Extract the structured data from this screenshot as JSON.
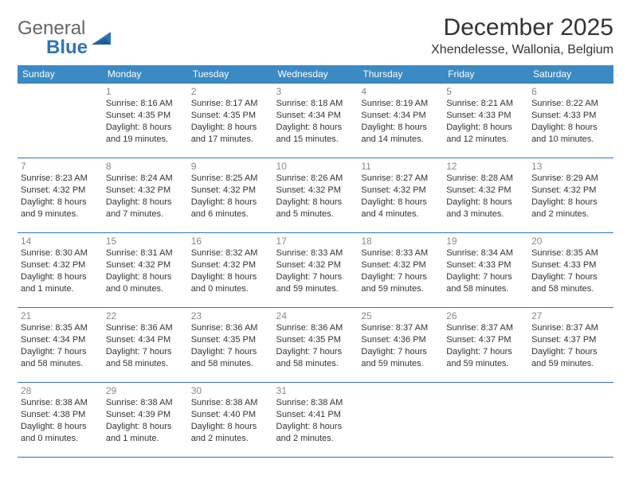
{
  "logo": {
    "word1": "General",
    "word2": "Blue"
  },
  "title": "December 2025",
  "location": "Xhendelesse, Wallonia, Belgium",
  "colors": {
    "header_bg": "#3b8ac4",
    "header_text": "#ffffff",
    "border": "#2f75b5",
    "daynum": "#888888",
    "text": "#333333",
    "logo_gray": "#666666",
    "logo_blue": "#2f75b5",
    "page_bg": "#ffffff"
  },
  "weekdays": [
    "Sunday",
    "Monday",
    "Tuesday",
    "Wednesday",
    "Thursday",
    "Friday",
    "Saturday"
  ],
  "weeks": [
    [
      null,
      {
        "n": "1",
        "sr": "Sunrise: 8:16 AM",
        "ss": "Sunset: 4:35 PM",
        "dl": "Daylight: 8 hours and 19 minutes."
      },
      {
        "n": "2",
        "sr": "Sunrise: 8:17 AM",
        "ss": "Sunset: 4:35 PM",
        "dl": "Daylight: 8 hours and 17 minutes."
      },
      {
        "n": "3",
        "sr": "Sunrise: 8:18 AM",
        "ss": "Sunset: 4:34 PM",
        "dl": "Daylight: 8 hours and 15 minutes."
      },
      {
        "n": "4",
        "sr": "Sunrise: 8:19 AM",
        "ss": "Sunset: 4:34 PM",
        "dl": "Daylight: 8 hours and 14 minutes."
      },
      {
        "n": "5",
        "sr": "Sunrise: 8:21 AM",
        "ss": "Sunset: 4:33 PM",
        "dl": "Daylight: 8 hours and 12 minutes."
      },
      {
        "n": "6",
        "sr": "Sunrise: 8:22 AM",
        "ss": "Sunset: 4:33 PM",
        "dl": "Daylight: 8 hours and 10 minutes."
      }
    ],
    [
      {
        "n": "7",
        "sr": "Sunrise: 8:23 AM",
        "ss": "Sunset: 4:32 PM",
        "dl": "Daylight: 8 hours and 9 minutes."
      },
      {
        "n": "8",
        "sr": "Sunrise: 8:24 AM",
        "ss": "Sunset: 4:32 PM",
        "dl": "Daylight: 8 hours and 7 minutes."
      },
      {
        "n": "9",
        "sr": "Sunrise: 8:25 AM",
        "ss": "Sunset: 4:32 PM",
        "dl": "Daylight: 8 hours and 6 minutes."
      },
      {
        "n": "10",
        "sr": "Sunrise: 8:26 AM",
        "ss": "Sunset: 4:32 PM",
        "dl": "Daylight: 8 hours and 5 minutes."
      },
      {
        "n": "11",
        "sr": "Sunrise: 8:27 AM",
        "ss": "Sunset: 4:32 PM",
        "dl": "Daylight: 8 hours and 4 minutes."
      },
      {
        "n": "12",
        "sr": "Sunrise: 8:28 AM",
        "ss": "Sunset: 4:32 PM",
        "dl": "Daylight: 8 hours and 3 minutes."
      },
      {
        "n": "13",
        "sr": "Sunrise: 8:29 AM",
        "ss": "Sunset: 4:32 PM",
        "dl": "Daylight: 8 hours and 2 minutes."
      }
    ],
    [
      {
        "n": "14",
        "sr": "Sunrise: 8:30 AM",
        "ss": "Sunset: 4:32 PM",
        "dl": "Daylight: 8 hours and 1 minute."
      },
      {
        "n": "15",
        "sr": "Sunrise: 8:31 AM",
        "ss": "Sunset: 4:32 PM",
        "dl": "Daylight: 8 hours and 0 minutes."
      },
      {
        "n": "16",
        "sr": "Sunrise: 8:32 AM",
        "ss": "Sunset: 4:32 PM",
        "dl": "Daylight: 8 hours and 0 minutes."
      },
      {
        "n": "17",
        "sr": "Sunrise: 8:33 AM",
        "ss": "Sunset: 4:32 PM",
        "dl": "Daylight: 7 hours and 59 minutes."
      },
      {
        "n": "18",
        "sr": "Sunrise: 8:33 AM",
        "ss": "Sunset: 4:32 PM",
        "dl": "Daylight: 7 hours and 59 minutes."
      },
      {
        "n": "19",
        "sr": "Sunrise: 8:34 AM",
        "ss": "Sunset: 4:33 PM",
        "dl": "Daylight: 7 hours and 58 minutes."
      },
      {
        "n": "20",
        "sr": "Sunrise: 8:35 AM",
        "ss": "Sunset: 4:33 PM",
        "dl": "Daylight: 7 hours and 58 minutes."
      }
    ],
    [
      {
        "n": "21",
        "sr": "Sunrise: 8:35 AM",
        "ss": "Sunset: 4:34 PM",
        "dl": "Daylight: 7 hours and 58 minutes."
      },
      {
        "n": "22",
        "sr": "Sunrise: 8:36 AM",
        "ss": "Sunset: 4:34 PM",
        "dl": "Daylight: 7 hours and 58 minutes."
      },
      {
        "n": "23",
        "sr": "Sunrise: 8:36 AM",
        "ss": "Sunset: 4:35 PM",
        "dl": "Daylight: 7 hours and 58 minutes."
      },
      {
        "n": "24",
        "sr": "Sunrise: 8:36 AM",
        "ss": "Sunset: 4:35 PM",
        "dl": "Daylight: 7 hours and 58 minutes."
      },
      {
        "n": "25",
        "sr": "Sunrise: 8:37 AM",
        "ss": "Sunset: 4:36 PM",
        "dl": "Daylight: 7 hours and 59 minutes."
      },
      {
        "n": "26",
        "sr": "Sunrise: 8:37 AM",
        "ss": "Sunset: 4:37 PM",
        "dl": "Daylight: 7 hours and 59 minutes."
      },
      {
        "n": "27",
        "sr": "Sunrise: 8:37 AM",
        "ss": "Sunset: 4:37 PM",
        "dl": "Daylight: 7 hours and 59 minutes."
      }
    ],
    [
      {
        "n": "28",
        "sr": "Sunrise: 8:38 AM",
        "ss": "Sunset: 4:38 PM",
        "dl": "Daylight: 8 hours and 0 minutes."
      },
      {
        "n": "29",
        "sr": "Sunrise: 8:38 AM",
        "ss": "Sunset: 4:39 PM",
        "dl": "Daylight: 8 hours and 1 minute."
      },
      {
        "n": "30",
        "sr": "Sunrise: 8:38 AM",
        "ss": "Sunset: 4:40 PM",
        "dl": "Daylight: 8 hours and 2 minutes."
      },
      {
        "n": "31",
        "sr": "Sunrise: 8:38 AM",
        "ss": "Sunset: 4:41 PM",
        "dl": "Daylight: 8 hours and 2 minutes."
      },
      null,
      null,
      null
    ]
  ]
}
